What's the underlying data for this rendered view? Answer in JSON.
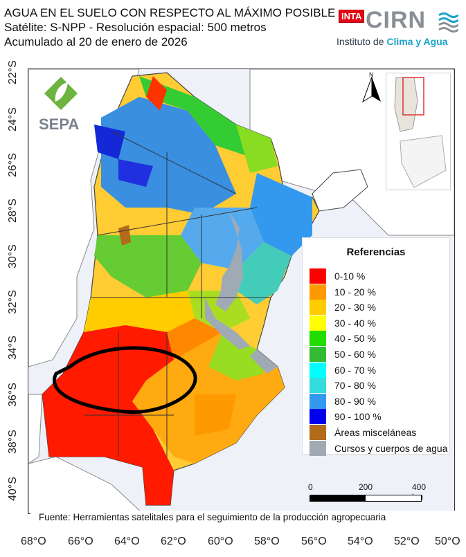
{
  "header": {
    "line1": "AGUA EN EL SUELO CON RESPECTO AL MÁXIMO POSIBLE",
    "line2": "Satélite: S-NPP - Resolución espacial: 500 metros",
    "line3": "Acumulado al 20 de enero de 2026"
  },
  "logos": {
    "inta": "INTA",
    "cirn": "CIRN",
    "cirn_sub_prefix": "Instituto de ",
    "cirn_sub_accent": "Clima y Agua",
    "sepa": "SEPA"
  },
  "north_label": "N",
  "lat_labels": [
    "22°S",
    "24°S",
    "26°S",
    "28°S",
    "30°S",
    "32°S",
    "34°S",
    "36°S",
    "38°S",
    "40°S"
  ],
  "lon_labels": [
    "68°O",
    "66°O",
    "64°O",
    "62°O",
    "60°O",
    "58°O",
    "56°O",
    "54°O",
    "52°O",
    "50°O"
  ],
  "legend": {
    "title": "Referencias",
    "items": [
      {
        "label": "0-10 %",
        "color": "#ff0000"
      },
      {
        "label": "10 - 20 %",
        "color": "#ff9900"
      },
      {
        "label": "20 - 30 %",
        "color": "#ffcc00"
      },
      {
        "label": "30 - 40 %",
        "color": "#ffff00"
      },
      {
        "label": "40 - 50 %",
        "color": "#22dd00"
      },
      {
        "label": "50 - 60 %",
        "color": "#33bb33"
      },
      {
        "label": "60 - 70 %",
        "color": "#00ffff"
      },
      {
        "label": "70 - 80 %",
        "color": "#33dddd"
      },
      {
        "label": "80 - 90 %",
        "color": "#3399ee"
      },
      {
        "label": "90 - 100 %",
        "color": "#0000ee"
      },
      {
        "label": "Áreas misceláneas",
        "color": "#b36a1a"
      },
      {
        "label": "Cursos y cuerpos de agua",
        "color": "#a0aab5"
      }
    ]
  },
  "scale": {
    "l0": "0",
    "l1": "200",
    "l2": "400 km"
  },
  "source": "Fuente: Herramientas satelitales para el seguimiento de la producción agropecuaria"
}
